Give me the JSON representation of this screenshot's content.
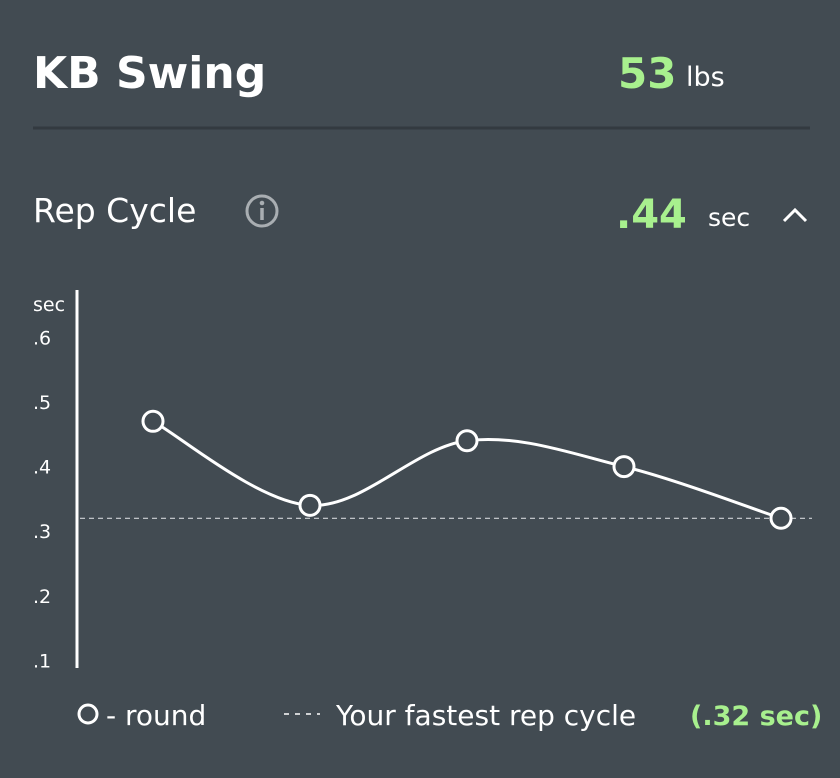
{
  "header": {
    "title": "KB Swing",
    "weight": "53",
    "weight_unit": "lbs"
  },
  "section": {
    "title": "Rep Cycle",
    "value": ".44",
    "unit": "sec"
  },
  "chart_data": {
    "type": "line",
    "y_label": "sec",
    "categories": [
      null,
      null,
      null,
      null,
      null
    ],
    "series": [
      {
        "name": "- round",
        "color": "#ffffff",
        "values": [
          0.47,
          0.34,
          0.44,
          0.4,
          0.32
        ]
      }
    ],
    "reference_line": 0.32,
    "reference_name": "Your fastest rep cycle",
    "reference_label": "(.32 sec)",
    "ylim": [
      0.09,
      0.67
    ],
    "yticks": [
      {
        "value": 0.1,
        "label": ".1"
      },
      {
        "value": 0.2,
        "label": ".2"
      },
      {
        "value": 0.3,
        "label": ".3"
      },
      {
        "value": 0.4,
        "label": ".4"
      },
      {
        "value": 0.5,
        "label": ".5"
      },
      {
        "value": 0.6,
        "label": ".6"
      }
    ]
  }
}
